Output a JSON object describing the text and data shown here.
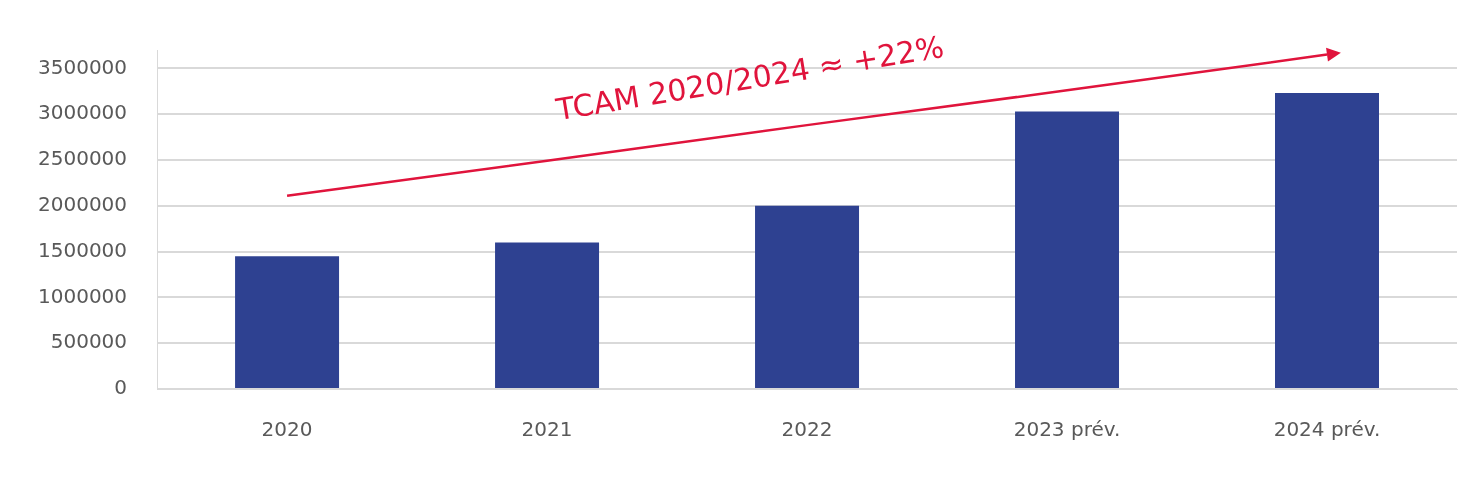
{
  "chart_data": {
    "type": "bar",
    "categories": [
      "2020",
      "2021",
      "2022",
      "2023 prév.",
      "2024 prév."
    ],
    "series": [
      {
        "color": "#2e4191",
        "values": [
          1450000,
          1600000,
          2000000,
          3030000,
          3230000
        ]
      },
      {
        "type": "line",
        "color": "#e0143c",
        "values": [
          2110000,
          2490000,
          2880000,
          3260000,
          3650000
        ]
      }
    ],
    "ylim": [
      0,
      3700000
    ],
    "yticks": [
      0,
      500000,
      1000000,
      1500000,
      2000000,
      2500000,
      3000000,
      3500000
    ],
    "grid": "y",
    "legend": false,
    "annotations": [
      "TCAM 2020/2024 ≈ +22%"
    ]
  }
}
